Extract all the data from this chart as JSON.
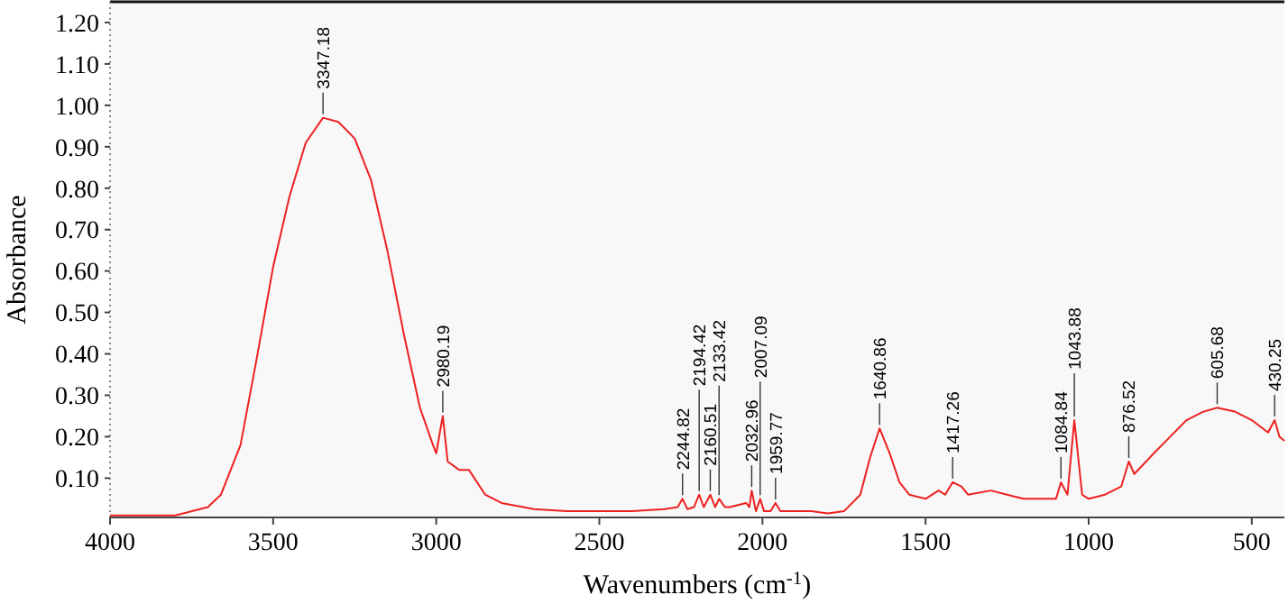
{
  "chart_data": {
    "type": "line",
    "xlabel": "Wavenumbers (cm$^{-1}$)",
    "ylabel": "Absorbance",
    "xlim": [
      4000,
      400
    ],
    "ylim": [
      0.005,
      1.25
    ],
    "xticks": [
      4000,
      3500,
      3000,
      2500,
      2000,
      1500,
      1000,
      500
    ],
    "yticks": [
      {
        "value": 0.1,
        "label": "0.10"
      },
      {
        "value": 0.2,
        "label": "0.20"
      },
      {
        "value": 0.3,
        "label": "0.30"
      },
      {
        "value": 0.4,
        "label": "0.40"
      },
      {
        "value": 0.5,
        "label": "0.50"
      },
      {
        "value": 0.6,
        "label": "0.60"
      },
      {
        "value": 0.7,
        "label": "0.70"
      },
      {
        "value": 0.8,
        "label": "0.80"
      },
      {
        "value": 0.9,
        "label": "0.90"
      },
      {
        "value": 1.0,
        "label": "1.00"
      },
      {
        "value": 1.1,
        "label": "1.10"
      },
      {
        "value": 1.2,
        "label": "1.20"
      }
    ],
    "grid": false,
    "marker": "none",
    "line_style": "solid",
    "series": [
      {
        "color": "#ee2020",
        "x": [
          4000,
          3800,
          3700,
          3660,
          3600,
          3550,
          3500,
          3450,
          3400,
          3347,
          3300,
          3250,
          3200,
          3150,
          3100,
          3050,
          3010,
          3000,
          2980,
          2965,
          2930,
          2900,
          2850,
          2800,
          2700,
          2600,
          2500,
          2400,
          2300,
          2260,
          2245,
          2230,
          2210,
          2194,
          2180,
          2160,
          2145,
          2133,
          2115,
          2100,
          2050,
          2040,
          2033,
          2020,
          2007,
          1995,
          1975,
          1960,
          1945,
          1900,
          1850,
          1800,
          1750,
          1700,
          1670,
          1641,
          1610,
          1580,
          1550,
          1500,
          1460,
          1440,
          1417,
          1390,
          1370,
          1300,
          1250,
          1200,
          1100,
          1085,
          1065,
          1044,
          1020,
          1000,
          950,
          900,
          877,
          860,
          800,
          750,
          700,
          650,
          606,
          550,
          500,
          450,
          430,
          415,
          400
        ],
        "values": [
          0.01,
          0.01,
          0.03,
          0.06,
          0.18,
          0.39,
          0.61,
          0.78,
          0.91,
          0.97,
          0.96,
          0.92,
          0.82,
          0.65,
          0.45,
          0.27,
          0.18,
          0.16,
          0.25,
          0.14,
          0.12,
          0.12,
          0.06,
          0.04,
          0.025,
          0.02,
          0.02,
          0.02,
          0.025,
          0.03,
          0.05,
          0.025,
          0.03,
          0.06,
          0.03,
          0.06,
          0.03,
          0.05,
          0.03,
          0.03,
          0.04,
          0.03,
          0.07,
          0.02,
          0.05,
          0.02,
          0.02,
          0.04,
          0.02,
          0.02,
          0.02,
          0.015,
          0.02,
          0.06,
          0.15,
          0.22,
          0.16,
          0.09,
          0.06,
          0.05,
          0.07,
          0.06,
          0.09,
          0.08,
          0.06,
          0.07,
          0.06,
          0.05,
          0.05,
          0.09,
          0.06,
          0.24,
          0.06,
          0.05,
          0.06,
          0.08,
          0.14,
          0.11,
          0.16,
          0.2,
          0.24,
          0.26,
          0.27,
          0.26,
          0.24,
          0.21,
          0.24,
          0.2,
          0.19
        ]
      }
    ],
    "annotations": [
      {
        "text": "3347.18",
        "x": 3347,
        "y": 0.97
      },
      {
        "text": "2980.19",
        "x": 2980,
        "y": 0.25
      },
      {
        "text": "2244.82",
        "x": 2245,
        "y": 0.05
      },
      {
        "text": "2194.42",
        "x": 2194,
        "y": 0.06
      },
      {
        "text": "2160.51",
        "x": 2160,
        "y": 0.06
      },
      {
        "text": "2133.42",
        "x": 2133,
        "y": 0.05
      },
      {
        "text": "2032.96",
        "x": 2033,
        "y": 0.07
      },
      {
        "text": "2007.09",
        "x": 2007,
        "y": 0.05
      },
      {
        "text": "1959.77",
        "x": 1960,
        "y": 0.04
      },
      {
        "text": "1640.86",
        "x": 1641,
        "y": 0.22
      },
      {
        "text": "1417.26",
        "x": 1417,
        "y": 0.09
      },
      {
        "text": "1084.84",
        "x": 1085,
        "y": 0.09
      },
      {
        "text": "1043.88",
        "x": 1044,
        "y": 0.24
      },
      {
        "text": "876.52",
        "x": 877,
        "y": 0.14
      },
      {
        "text": "605.68",
        "x": 606,
        "y": 0.27
      },
      {
        "text": "430.25",
        "x": 430,
        "y": 0.24
      }
    ]
  }
}
